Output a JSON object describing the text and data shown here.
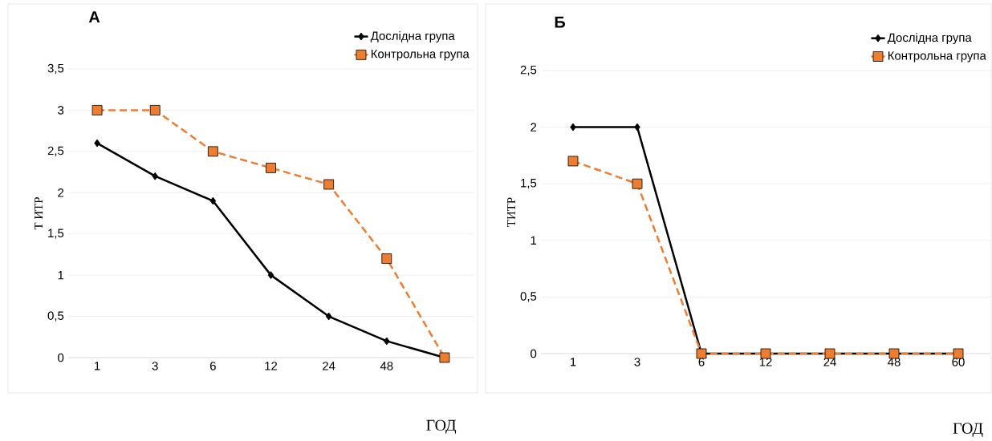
{
  "chart_data": [
    {
      "type": "line",
      "title": "А",
      "ylabel": "Т ИТР",
      "xlabel": "ГОД",
      "categories": [
        "1",
        "3",
        "6",
        "12",
        "24",
        "48",
        null
      ],
      "series": [
        {
          "name": "Дослідна група",
          "color": "#000000",
          "values": [
            2.6,
            2.2,
            1.9,
            1.0,
            0.5,
            0.2,
            0
          ],
          "marker": "diamond",
          "line_style": "solid"
        },
        {
          "name": "Контрольна група",
          "color": "#ed7d31",
          "values": [
            3,
            3,
            2.5,
            2.3,
            2.1,
            1.2,
            0
          ],
          "marker": "square",
          "line_style": "dashed"
        }
      ],
      "ylim": [
        0,
        3.5
      ],
      "yticks": [
        0,
        {
          "value": 0.5,
          "label": "0,5"
        },
        1,
        {
          "value": 1.5,
          "label": "1,5"
        },
        2,
        {
          "value": 2.5,
          "label": "2,5"
        },
        3,
        {
          "value": 3.5,
          "label": "3,5"
        }
      ],
      "grid": "y",
      "legend": "top right"
    },
    {
      "type": "line",
      "title": "Б",
      "ylabel": "ТИТР",
      "xlabel": "ГОД",
      "categories": [
        "1",
        "3",
        "6",
        "12",
        "24",
        "48",
        "60"
      ],
      "series": [
        {
          "name": "Дослідна група",
          "color": "#000000",
          "values": [
            2,
            2,
            0,
            0,
            0,
            0,
            0
          ],
          "marker": "diamond",
          "line_style": "solid"
        },
        {
          "name": "Контрольна група",
          "color": "#ed7d31",
          "values": [
            1.7,
            1.5,
            0,
            0,
            0,
            0,
            0
          ],
          "marker": "square",
          "line_style": "dashed"
        }
      ],
      "ylim": [
        0,
        2.5
      ],
      "yticks": [
        0,
        {
          "value": 0.5,
          "label": "0,5"
        },
        1,
        {
          "value": 1.5,
          "label": "1,5"
        },
        2,
        {
          "value": 2.5,
          "label": "2,5"
        }
      ],
      "grid": "y",
      "legend": "top right"
    }
  ]
}
